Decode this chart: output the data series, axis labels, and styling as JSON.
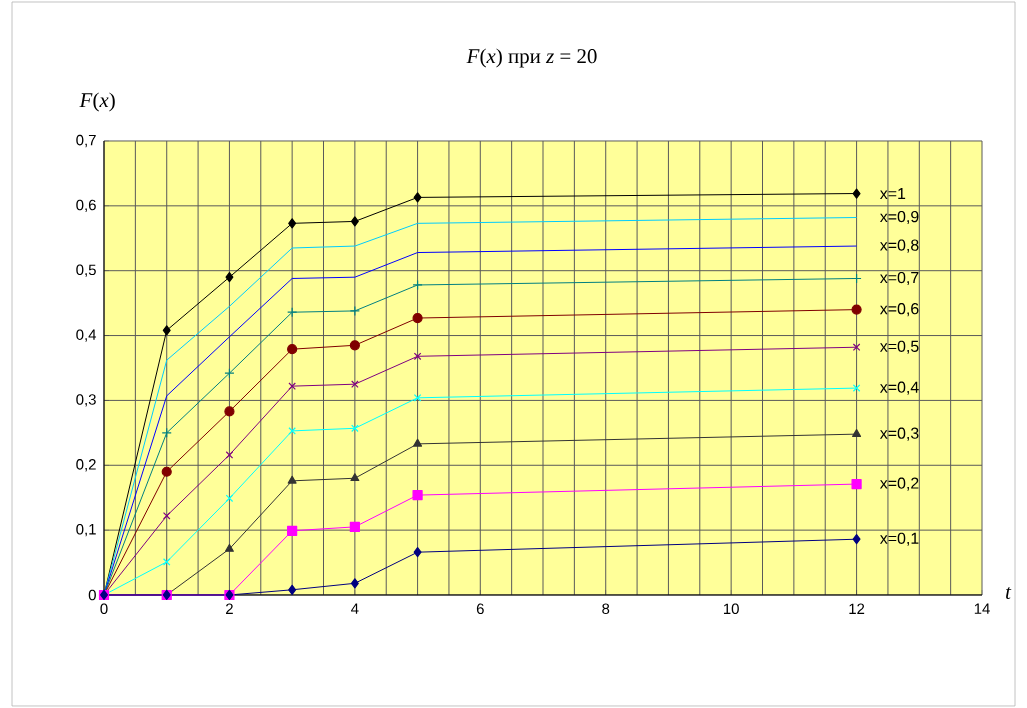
{
  "chart_data": {
    "type": "line",
    "title": "*F*(*x*) при *z* = 20",
    "xlabel": "t",
    "ylabel": "*F*(*x*)",
    "x": [
      0,
      1,
      2,
      3,
      4,
      5,
      12
    ],
    "xlim": [
      0,
      14
    ],
    "xticks": [
      0,
      2,
      4,
      6,
      8,
      10,
      12,
      14
    ],
    "ylim": [
      0,
      0.7
    ],
    "yticks": [
      0,
      {
        "value": 0.1,
        "label": "0,1"
      },
      {
        "value": 0.2,
        "label": "0,2"
      },
      {
        "value": 0.3,
        "label": "0,3"
      },
      {
        "value": 0.4,
        "label": "0,4"
      },
      {
        "value": 0.5,
        "label": "0,5"
      },
      {
        "value": 0.6,
        "label": "0,6"
      },
      {
        "value": 0.7,
        "label": "0,7"
      }
    ],
    "grid": true,
    "legend": "right",
    "series": [
      {
        "name": "x=1",
        "color": "#000000",
        "marker": "diamond",
        "values": [
          0,
          0.408,
          0.49,
          0.573,
          0.576,
          0.613,
          0.619
        ]
      },
      {
        "name": "x=0,9",
        "color": "#00ccff",
        "marker": "none",
        "values": [
          0,
          0.362,
          0.445,
          0.535,
          0.538,
          0.573,
          0.582
        ]
      },
      {
        "name": "x=0,8",
        "color": "#0000ff",
        "marker": "none",
        "values": [
          0,
          0.307,
          0.398,
          0.488,
          0.49,
          0.528,
          0.538
        ]
      },
      {
        "name": "x=0,7",
        "color": "#008080",
        "marker": "plus",
        "values": [
          0,
          0.25,
          0.342,
          0.436,
          0.438,
          0.478,
          0.488
        ]
      },
      {
        "name": "x=0,6",
        "color": "#800000",
        "marker": "circle",
        "values": [
          0,
          0.19,
          0.283,
          0.379,
          0.385,
          0.427,
          0.44
        ]
      },
      {
        "name": "x=0,5",
        "color": "#800080",
        "marker": "cross",
        "values": [
          0,
          0.122,
          0.216,
          0.322,
          0.325,
          0.368,
          0.382
        ]
      },
      {
        "name": "x=0,4",
        "color": "#00ffff",
        "marker": "cross",
        "values": [
          0,
          0.051,
          0.149,
          0.253,
          0.257,
          0.304,
          0.319
        ]
      },
      {
        "name": "x=0,3",
        "color": "#333333",
        "marker": "triangle",
        "values": [
          0,
          0,
          0.071,
          0.176,
          0.18,
          0.233,
          0.248
        ]
      },
      {
        "name": "x=0,2",
        "color": "#ff00ff",
        "marker": "square",
        "values": [
          0,
          0,
          0,
          0.099,
          0.105,
          0.154,
          0.171
        ]
      },
      {
        "name": "x=0,1",
        "color": "#000080",
        "marker": "diamond",
        "values": [
          0,
          0,
          0,
          0.008,
          0.018,
          0.066,
          0.086
        ]
      }
    ]
  }
}
